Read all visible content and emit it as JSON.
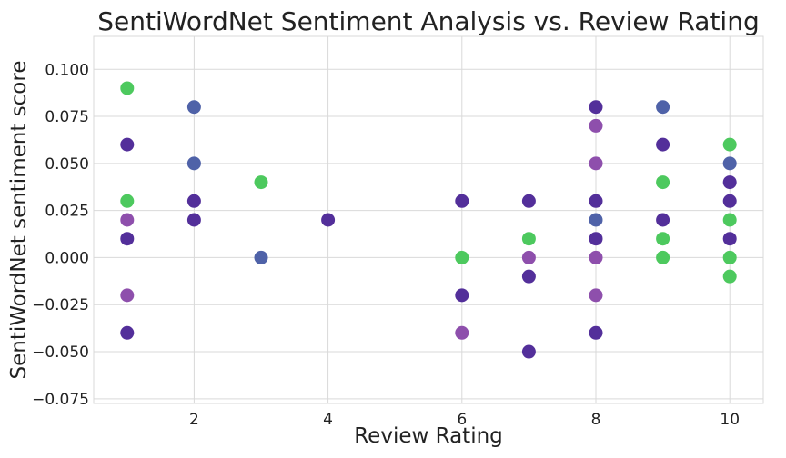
{
  "chart_data": {
    "type": "scatter",
    "title": "SentiWordNet Sentiment Analysis vs. Review Rating",
    "xlabel": "Review Rating",
    "ylabel": "SentiWordNet sentiment score",
    "xlim": [
      0.5,
      10.5
    ],
    "ylim": [
      -0.0775,
      0.1175
    ],
    "x_ticks": [
      2,
      4,
      6,
      8,
      10
    ],
    "x_tick_labels": [
      "2",
      "4",
      "6",
      "8",
      "10"
    ],
    "y_ticks": [
      -0.075,
      -0.05,
      -0.025,
      0.0,
      0.025,
      0.05,
      0.075,
      0.1
    ],
    "y_tick_labels": [
      "−0.075",
      "−0.050",
      "−0.025",
      "0.000",
      "0.025",
      "0.050",
      "0.075",
      "0.100"
    ],
    "grid": true,
    "colors": {
      "green": "#4dc95e",
      "blue": "#4f62a8",
      "purple": "#532f9a",
      "violet": "#8e4fac"
    },
    "points": [
      {
        "x": 1,
        "y": 0.09,
        "color": "green"
      },
      {
        "x": 1,
        "y": 0.06,
        "color": "purple"
      },
      {
        "x": 1,
        "y": 0.03,
        "color": "green"
      },
      {
        "x": 1,
        "y": 0.02,
        "color": "violet"
      },
      {
        "x": 1,
        "y": 0.01,
        "color": "purple"
      },
      {
        "x": 1,
        "y": -0.02,
        "color": "violet"
      },
      {
        "x": 1,
        "y": -0.04,
        "color": "purple"
      },
      {
        "x": 2,
        "y": 0.08,
        "color": "blue"
      },
      {
        "x": 2,
        "y": 0.05,
        "color": "blue"
      },
      {
        "x": 2,
        "y": 0.03,
        "color": "purple"
      },
      {
        "x": 2,
        "y": 0.02,
        "color": "purple"
      },
      {
        "x": 3,
        "y": 0.04,
        "color": "green"
      },
      {
        "x": 3,
        "y": 0.0,
        "color": "blue"
      },
      {
        "x": 4,
        "y": 0.02,
        "color": "purple"
      },
      {
        "x": 6,
        "y": 0.03,
        "color": "purple"
      },
      {
        "x": 6,
        "y": 0.0,
        "color": "green"
      },
      {
        "x": 6,
        "y": -0.02,
        "color": "purple"
      },
      {
        "x": 6,
        "y": -0.04,
        "color": "violet"
      },
      {
        "x": 7,
        "y": 0.03,
        "color": "purple"
      },
      {
        "x": 7,
        "y": 0.01,
        "color": "green"
      },
      {
        "x": 7,
        "y": 0.0,
        "color": "violet"
      },
      {
        "x": 7,
        "y": -0.01,
        "color": "purple"
      },
      {
        "x": 7,
        "y": -0.05,
        "color": "purple"
      },
      {
        "x": 8,
        "y": 0.08,
        "color": "purple"
      },
      {
        "x": 8,
        "y": 0.07,
        "color": "violet"
      },
      {
        "x": 8,
        "y": 0.05,
        "color": "violet"
      },
      {
        "x": 8,
        "y": 0.03,
        "color": "purple"
      },
      {
        "x": 8,
        "y": 0.02,
        "color": "blue"
      },
      {
        "x": 8,
        "y": 0.01,
        "color": "purple"
      },
      {
        "x": 8,
        "y": 0.0,
        "color": "violet"
      },
      {
        "x": 8,
        "y": -0.02,
        "color": "violet"
      },
      {
        "x": 8,
        "y": -0.04,
        "color": "purple"
      },
      {
        "x": 9,
        "y": 0.08,
        "color": "blue"
      },
      {
        "x": 9,
        "y": 0.06,
        "color": "purple"
      },
      {
        "x": 9,
        "y": 0.04,
        "color": "green"
      },
      {
        "x": 9,
        "y": 0.02,
        "color": "purple"
      },
      {
        "x": 9,
        "y": 0.01,
        "color": "green"
      },
      {
        "x": 9,
        "y": 0.0,
        "color": "green"
      },
      {
        "x": 10,
        "y": 0.06,
        "color": "green"
      },
      {
        "x": 10,
        "y": 0.05,
        "color": "blue"
      },
      {
        "x": 10,
        "y": 0.04,
        "color": "purple"
      },
      {
        "x": 10,
        "y": 0.03,
        "color": "purple"
      },
      {
        "x": 10,
        "y": 0.02,
        "color": "green"
      },
      {
        "x": 10,
        "y": 0.01,
        "color": "purple"
      },
      {
        "x": 10,
        "y": 0.0,
        "color": "green"
      },
      {
        "x": 10,
        "y": -0.01,
        "color": "green"
      }
    ]
  }
}
